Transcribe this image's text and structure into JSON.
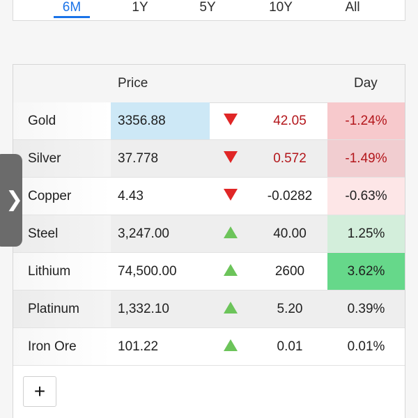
{
  "ranges": {
    "tabs": [
      "6M",
      "1Y",
      "5Y",
      "10Y",
      "All"
    ],
    "active": "6M"
  },
  "table": {
    "headers": {
      "price": "Price",
      "day": "Day"
    },
    "rows": [
      {
        "name": "Gold",
        "price": "3356.88",
        "direction": "down",
        "change": "42.05",
        "day": "-1.24%"
      },
      {
        "name": "Silver",
        "price": "37.778",
        "direction": "down",
        "change": "0.572",
        "day": "-1.49%"
      },
      {
        "name": "Copper",
        "price": "4.43",
        "direction": "down",
        "change": "-0.0282",
        "day": "-0.63%"
      },
      {
        "name": "Steel",
        "price": "3,247.00",
        "direction": "up",
        "change": "40.00",
        "day": "1.25%"
      },
      {
        "name": "Lithium",
        "price": "74,500.00",
        "direction": "up",
        "change": "2600",
        "day": "3.62%"
      },
      {
        "name": "Platinum",
        "price": "1,332.10",
        "direction": "up",
        "change": "5.20",
        "day": "0.39%"
      },
      {
        "name": "Iron Ore",
        "price": "101.22",
        "direction": "up",
        "change": "0.01",
        "day": "0.01%"
      }
    ]
  },
  "add_button": {
    "label": "+"
  },
  "side_handle": {
    "icon": "chevron-right-icon",
    "glyph": "❯"
  },
  "colors": {
    "accent": "#1a73e8",
    "price_highlight": "#cde8f6",
    "down": "#e02626",
    "up": "#6cc45a",
    "day_neg_strong": "#f7c9cc",
    "day_neg_mid": "#f1cdd0",
    "day_neg_light": "#fde6e7",
    "day_pos_light": "#d3eedb",
    "day_pos_strong": "#66d88a"
  }
}
